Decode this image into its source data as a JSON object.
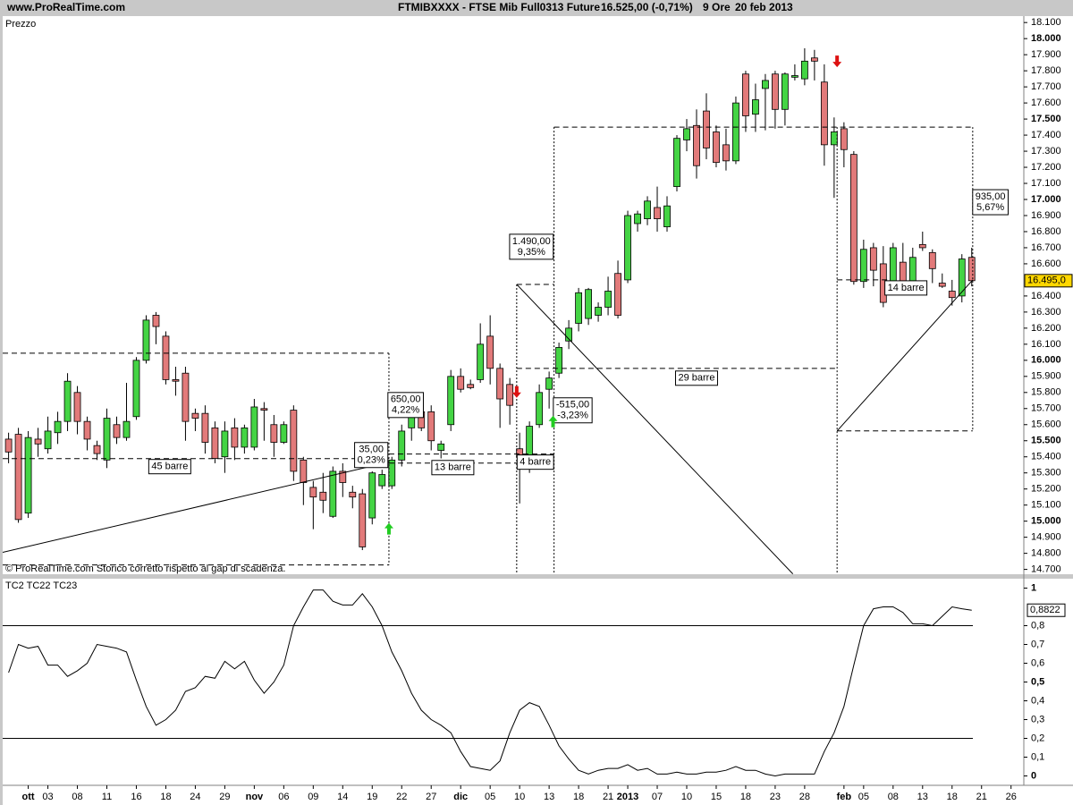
{
  "header": {
    "site": "www.ProRealTime.com",
    "instrument": "FTMIBXXXX - FTSE Mib Full0313 Future",
    "price": "16.525,00 (-0,71%)",
    "timeframe": "9 Ore",
    "date": "20 feb 2013"
  },
  "chart_data": [
    {
      "type": "candlestick",
      "title": "Prezzo",
      "note": "© ProRealTime.com  Storico corretto rispetto al gap di scadenza.",
      "up_color": "#44d444",
      "down_color": "#e27a7a",
      "signal_up_color": "#22cc22",
      "signal_down_color": "#dd1111",
      "xlim": [
        -0.6,
        103.3
      ],
      "ylim": [
        14670,
        18140
      ],
      "open": [
        15510,
        15540,
        15050,
        15510,
        15450,
        15550,
        15620,
        15800,
        15620,
        15470,
        15380,
        15600,
        15520,
        15650,
        16000,
        16280,
        16150,
        15880,
        15920,
        15670,
        15670,
        15580,
        15400,
        15580,
        15460,
        15460,
        15700,
        15600,
        15490,
        15690,
        15380,
        15210,
        15180,
        15030,
        15310,
        15180,
        15170,
        15020,
        15220,
        15220,
        15380,
        15580,
        15680,
        15680,
        15440,
        15600,
        15900,
        15850,
        15880,
        16150,
        15950,
        15850,
        15450,
        15380,
        15600,
        15820,
        15920,
        16120,
        16230,
        16260,
        16280,
        16330,
        16540,
        16500,
        16850,
        16880,
        16950,
        16830,
        17080,
        17370,
        17460,
        17550,
        17420,
        17340,
        17240,
        17780,
        17530,
        17690,
        17780,
        17560,
        17760,
        17750,
        17880,
        17730,
        17340,
        17440,
        17280,
        16490,
        16700,
        16600,
        16460,
        16610,
        16480,
        16720,
        16670,
        16480,
        16430,
        16400,
        16640
      ],
      "high": [
        15550,
        15580,
        15560,
        15580,
        15650,
        15680,
        15920,
        15840,
        15650,
        15500,
        15700,
        15650,
        15860,
        16020,
        16280,
        16300,
        16180,
        15960,
        15960,
        15700,
        15720,
        15620,
        15620,
        15640,
        15600,
        15760,
        15740,
        15660,
        15620,
        15720,
        15400,
        15250,
        15300,
        15340,
        15360,
        15220,
        15200,
        15310,
        15320,
        15400,
        15600,
        15720,
        15720,
        15720,
        15500,
        15940,
        15950,
        15880,
        16230,
        16280,
        15980,
        15890,
        15550,
        15620,
        15850,
        15930,
        16110,
        16250,
        16450,
        16450,
        16360,
        16520,
        16620,
        16930,
        16930,
        17020,
        17080,
        17020,
        17400,
        17500,
        17560,
        17660,
        17460,
        17440,
        17640,
        17800,
        17720,
        17780,
        17800,
        17790,
        17840,
        17940,
        17930,
        17840,
        17510,
        17480,
        17300,
        16750,
        16730,
        16710,
        16730,
        16730,
        16700,
        16800,
        16690,
        16540,
        16500,
        16660,
        16700
      ],
      "low": [
        15360,
        14990,
        15020,
        15400,
        15420,
        15480,
        15560,
        15540,
        15440,
        15380,
        15330,
        15480,
        15500,
        15630,
        15980,
        16100,
        15850,
        15780,
        15500,
        15560,
        15420,
        15360,
        15300,
        15380,
        15420,
        15440,
        15500,
        15400,
        15480,
        15250,
        15100,
        14950,
        15050,
        15020,
        15150,
        15080,
        14820,
        14980,
        15200,
        15200,
        15340,
        15500,
        15560,
        15440,
        15390,
        15560,
        15800,
        15820,
        15860,
        15850,
        15580,
        15600,
        15110,
        15300,
        15580,
        15700,
        15890,
        16070,
        16180,
        16220,
        16240,
        16280,
        16260,
        16480,
        16800,
        16840,
        16800,
        16800,
        17050,
        17300,
        17130,
        17250,
        17200,
        17180,
        17220,
        17420,
        17420,
        17430,
        17440,
        17460,
        17740,
        17710,
        17740,
        17210,
        17010,
        17200,
        16470,
        16450,
        16460,
        16330,
        16440,
        16420,
        16450,
        16680,
        16480,
        16450,
        16340,
        16360,
        16460
      ],
      "close": [
        15430,
        15010,
        15520,
        15480,
        15560,
        15620,
        15870,
        15620,
        15510,
        15420,
        15640,
        15520,
        15620,
        16000,
        16250,
        16210,
        15880,
        15870,
        15620,
        15640,
        15490,
        15390,
        15560,
        15460,
        15580,
        15710,
        15690,
        15490,
        15600,
        15310,
        15240,
        15150,
        15130,
        15310,
        15240,
        15150,
        14840,
        15300,
        15290,
        15380,
        15560,
        15680,
        15580,
        15500,
        15480,
        15900,
        15820,
        15830,
        16100,
        15950,
        15760,
        15720,
        15400,
        15590,
        15800,
        15890,
        16080,
        16200,
        16420,
        16440,
        16330,
        16430,
        16280,
        16900,
        16910,
        16990,
        16880,
        16960,
        17380,
        17440,
        17210,
        17320,
        17230,
        17240,
        17600,
        17520,
        17620,
        17740,
        17560,
        17780,
        17770,
        17860,
        17860,
        17340,
        17420,
        17310,
        16490,
        16690,
        16560,
        16360,
        16700,
        16480,
        16640,
        16700,
        16570,
        16460,
        16390,
        16630,
        16495
      ],
      "yticks": [
        {
          "value": 14700,
          "label": "14.700"
        },
        {
          "value": 14800,
          "label": "14.800"
        },
        {
          "value": 14900,
          "label": "14.900"
        },
        {
          "value": 15000,
          "label": "15.000",
          "bold": true
        },
        {
          "value": 15100,
          "label": "15.100"
        },
        {
          "value": 15200,
          "label": "15.200"
        },
        {
          "value": 15300,
          "label": "15.300"
        },
        {
          "value": 15400,
          "label": "15.400"
        },
        {
          "value": 15500,
          "label": "15.500",
          "bold": true
        },
        {
          "value": 15600,
          "label": "15.600"
        },
        {
          "value": 15700,
          "label": "15.700"
        },
        {
          "value": 15800,
          "label": "15.800"
        },
        {
          "value": 15900,
          "label": "15.900"
        },
        {
          "value": 16000,
          "label": "16.000",
          "bold": true
        },
        {
          "value": 16100,
          "label": "16.100"
        },
        {
          "value": 16200,
          "label": "16.200"
        },
        {
          "value": 16300,
          "label": "16.300"
        },
        {
          "value": 16400,
          "label": "16.400"
        },
        {
          "value": 16600,
          "label": "16.600"
        },
        {
          "value": 16700,
          "label": "16.700"
        },
        {
          "value": 16800,
          "label": "16.800"
        },
        {
          "value": 16900,
          "label": "16.900"
        },
        {
          "value": 17000,
          "label": "17.000",
          "bold": true
        },
        {
          "value": 17100,
          "label": "17.100"
        },
        {
          "value": 17200,
          "label": "17.200"
        },
        {
          "value": 17300,
          "label": "17.300"
        },
        {
          "value": 17400,
          "label": "17.400"
        },
        {
          "value": 17500,
          "label": "17.500",
          "bold": true
        },
        {
          "value": 17600,
          "label": "17.600"
        },
        {
          "value": 17700,
          "label": "17.700"
        },
        {
          "value": 17800,
          "label": "17.800"
        },
        {
          "value": 17900,
          "label": "17.900"
        },
        {
          "value": 18000,
          "label": "18.000",
          "bold": true
        },
        {
          "value": 18100,
          "label": "18.100"
        }
      ],
      "price_tag": {
        "value": 16495,
        "label": "16.495,0",
        "color": "#ffd700"
      },
      "drawings": [
        {
          "x": [
            -0.6,
            38.7
          ],
          "y": [
            16044,
            16044
          ],
          "style": "dashed"
        },
        {
          "x": [
            -0.6,
            38.7
          ],
          "y": [
            14728,
            14728
          ],
          "style": "dashed"
        },
        {
          "x": [
            38.7,
            38.7
          ],
          "y": [
            16044,
            14728
          ],
          "style": "dotted"
        },
        {
          "x": [
            -0.6,
            38.7
          ],
          "y": [
            15389,
            15389
          ],
          "style": "dashed"
        },
        {
          "x": [
            -0.6,
            38.7
          ],
          "y": [
            14806,
            15367
          ],
          "style": "solid"
        },
        {
          "x": [
            38.7,
            55.5
          ],
          "y": [
            15417,
            15417
          ],
          "style": "dashed"
        },
        {
          "x": [
            38.7,
            55.5
          ],
          "y": [
            15361,
            15361
          ],
          "style": "dashed"
        },
        {
          "x": [
            51.7,
            51.7
          ],
          "y": [
            16472,
            14672
          ],
          "style": "dotted"
        },
        {
          "x": [
            51.7,
            55.5
          ],
          "y": [
            16472,
            16472
          ],
          "style": "dashed"
        },
        {
          "x": [
            55.5,
            55.5
          ],
          "y": [
            17450,
            14672
          ],
          "style": "dotted"
        },
        {
          "x": [
            55.5,
            98.1
          ],
          "y": [
            17450,
            17450
          ],
          "style": "dashed"
        },
        {
          "x": [
            51.7,
            79.8
          ],
          "y": [
            16472,
            14672
          ],
          "style": "solid"
        },
        {
          "x": [
            51.7,
            84.3
          ],
          "y": [
            15950,
            15950
          ],
          "style": "dashed"
        },
        {
          "x": [
            84.3,
            84.3
          ],
          "y": [
            17450,
            14672
          ],
          "style": "dotted"
        },
        {
          "x": [
            84.3,
            98.1
          ],
          "y": [
            15561,
            15561
          ],
          "style": "dashed"
        },
        {
          "x": [
            98.1,
            98.1
          ],
          "y": [
            17450,
            15561
          ],
          "style": "dotted"
        },
        {
          "x": [
            84.3,
            89.5
          ],
          "y": [
            16500,
            16500
          ],
          "style": "dashed"
        },
        {
          "x": [
            84.3,
            98.1
          ],
          "y": [
            15561,
            16500
          ],
          "style": "solid"
        }
      ],
      "annotations": [
        {
          "x": 16.4,
          "y": 15339,
          "lines": [
            "45 barre"
          ]
        },
        {
          "x": 36.9,
          "y": 15411,
          "lines": [
            "35,00",
            "0,23%"
          ]
        },
        {
          "x": 40.4,
          "y": 15722,
          "lines": [
            "650,00",
            "4,22%"
          ]
        },
        {
          "x": 45.2,
          "y": 15333,
          "lines": [
            "13 barre"
          ]
        },
        {
          "x": 53.6,
          "y": 15367,
          "lines": [
            "4 barre"
          ]
        },
        {
          "x": 53.2,
          "y": 16706,
          "lines": [
            "1.490,00",
            "9,35%"
          ]
        },
        {
          "x": 57.4,
          "y": 15689,
          "lines": [
            "-515,00",
            "-3,23%"
          ]
        },
        {
          "x": 70,
          "y": 15889,
          "lines": [
            "29 barre"
          ]
        },
        {
          "x": 91.3,
          "y": 16450,
          "lines": [
            "14 barre"
          ]
        },
        {
          "x": 99.9,
          "y": 16983,
          "lines": [
            "935,00",
            "5,67%"
          ]
        }
      ],
      "signals": [
        {
          "x": 38.7,
          "y": 14950,
          "direction": "up"
        },
        {
          "x": 55.4,
          "y": 15617,
          "direction": "up"
        },
        {
          "x": 51.7,
          "y": 15806,
          "direction": "down"
        },
        {
          "x": 84.3,
          "y": 17861,
          "direction": "down"
        }
      ]
    },
    {
      "type": "line",
      "title": "TC2 TC22 TC23",
      "color": "#000000",
      "xlim": [
        -0.6,
        103.3
      ],
      "ylim": [
        -0.05,
        1.05
      ],
      "values": [
        0.55,
        0.7,
        0.68,
        0.69,
        0.59,
        0.59,
        0.53,
        0.56,
        0.6,
        0.7,
        0.69,
        0.68,
        0.66,
        0.51,
        0.37,
        0.27,
        0.3,
        0.35,
        0.45,
        0.47,
        0.53,
        0.52,
        0.61,
        0.57,
        0.61,
        0.51,
        0.44,
        0.5,
        0.59,
        0.8,
        0.9,
        0.99,
        0.99,
        0.93,
        0.91,
        0.91,
        0.97,
        0.9,
        0.8,
        0.66,
        0.56,
        0.44,
        0.35,
        0.3,
        0.27,
        0.23,
        0.13,
        0.05,
        0.04,
        0.03,
        0.08,
        0.23,
        0.35,
        0.39,
        0.37,
        0.27,
        0.16,
        0.09,
        0.03,
        0.01,
        0.03,
        0.04,
        0.04,
        0.06,
        0.03,
        0.04,
        0.01,
        0.01,
        0.02,
        0.01,
        0.01,
        0.02,
        0.02,
        0.03,
        0.05,
        0.03,
        0.03,
        0.01,
        0,
        0.01,
        0.01,
        0.01,
        0.01,
        0.13,
        0.23,
        0.37,
        0.59,
        0.8,
        0.89,
        0.9,
        0.9,
        0.87,
        0.81,
        0.81,
        0.8,
        0.85,
        0.9,
        0.89,
        0.8822
      ],
      "levels": [
        0.8,
        0.2
      ],
      "yticks": [
        1,
        {
          "value": 0.8,
          "label": "0,8"
        },
        {
          "value": 0.7,
          "label": "0,7"
        },
        {
          "value": 0.6,
          "label": "0,6"
        },
        {
          "value": 0.5,
          "label": "0,5"
        },
        {
          "value": 0.4,
          "label": "0,4"
        },
        {
          "value": 0.3,
          "label": "0,3"
        },
        {
          "value": 0.2,
          "label": "0,2"
        },
        {
          "value": 0.1,
          "label": "0,1"
        },
        0
      ],
      "bold_yticks": [
        1,
        0.5,
        0
      ],
      "value_tag": {
        "value": 0.8822,
        "label": "0,8822"
      },
      "xticks": [
        {
          "value": 2,
          "label": "ott",
          "bold": true
        },
        {
          "value": 4,
          "label": "03"
        },
        {
          "value": 7,
          "label": "08"
        },
        {
          "value": 10,
          "label": "11"
        },
        {
          "value": 13,
          "label": "16"
        },
        {
          "value": 16,
          "label": "18"
        },
        {
          "value": 19,
          "label": "24"
        },
        {
          "value": 22,
          "label": "29"
        },
        {
          "value": 25,
          "label": "nov",
          "bold": true
        },
        {
          "value": 28,
          "label": "06"
        },
        {
          "value": 31,
          "label": "09"
        },
        {
          "value": 34,
          "label": "14"
        },
        {
          "value": 37,
          "label": "19"
        },
        {
          "value": 40,
          "label": "22"
        },
        {
          "value": 43,
          "label": "27"
        },
        {
          "value": 46,
          "label": "dic",
          "bold": true
        },
        {
          "value": 49,
          "label": "05"
        },
        {
          "value": 52,
          "label": "10"
        },
        {
          "value": 55,
          "label": "13"
        },
        {
          "value": 58,
          "label": "18"
        },
        {
          "value": 61,
          "label": "21"
        },
        {
          "value": 63,
          "label": "2013",
          "bold": true
        },
        {
          "value": 66,
          "label": "07"
        },
        {
          "value": 69,
          "label": "10"
        },
        {
          "value": 72,
          "label": "15"
        },
        {
          "value": 75,
          "label": "18"
        },
        {
          "value": 78,
          "label": "23"
        },
        {
          "value": 81,
          "label": "28"
        },
        {
          "value": 85,
          "label": "feb",
          "bold": true
        },
        {
          "value": 87,
          "label": "05"
        },
        {
          "value": 90,
          "label": "08"
        },
        {
          "value": 93,
          "label": "13"
        },
        {
          "value": 96,
          "label": "18"
        },
        {
          "value": 99,
          "label": "21"
        },
        {
          "value": 102,
          "label": "26"
        }
      ]
    }
  ]
}
